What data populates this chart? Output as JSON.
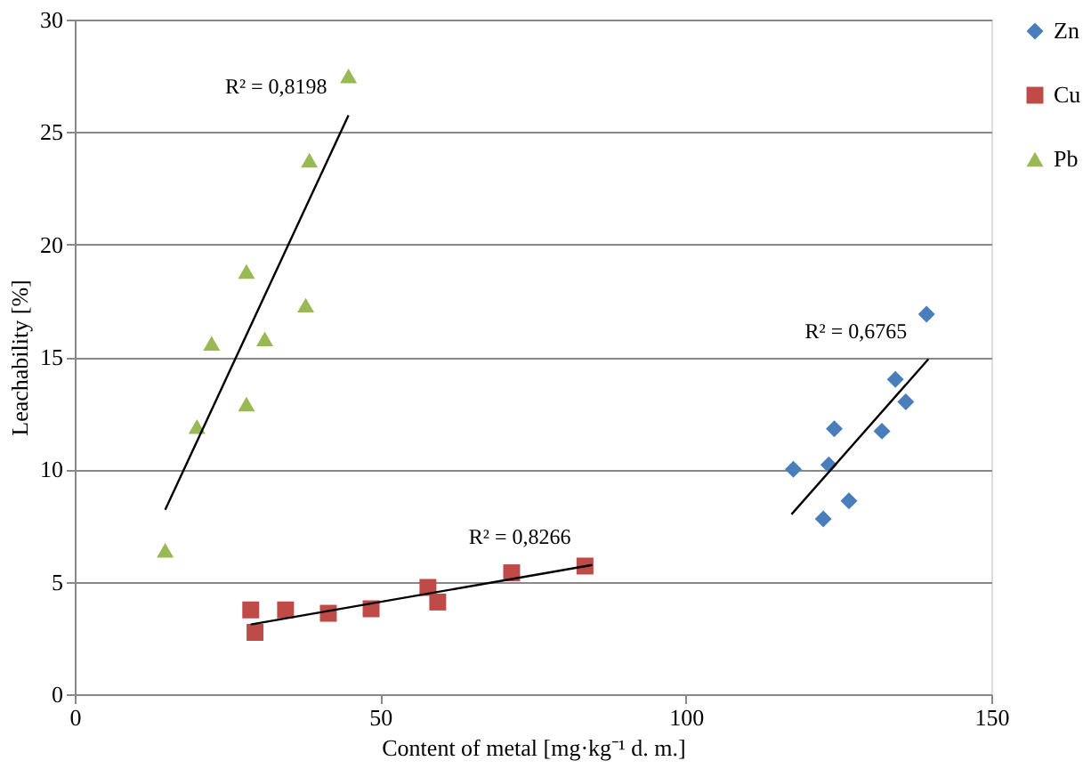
{
  "chart_data": {
    "type": "scatter",
    "xlabel": "Content of metal  [mg·kg⁻¹  d. m.]",
    "ylabel": "Leachability  [%]",
    "xlim": [
      0,
      150
    ],
    "xticks": [
      0,
      50,
      100,
      150
    ],
    "ylim": [
      0,
      30
    ],
    "yticks": [
      0,
      5,
      10,
      15,
      20,
      25,
      30
    ],
    "grid": "y",
    "legend": "right",
    "series": [
      {
        "name": "Zn",
        "color": "#4a7ebb",
        "marker": "diamond",
        "x": [
          139.4,
          134.3,
          136,
          124.3,
          132.1,
          117.6,
          123.4,
          122.5,
          126.7
        ],
        "values": [
          16.9,
          14.0,
          13.0,
          11.8,
          11.7,
          10.0,
          10.2,
          7.8,
          8.6
        ]
      },
      {
        "name": "Cu",
        "color": "#be4b48",
        "marker": "square",
        "x": [
          28.8,
          29.5,
          34.5,
          41.5,
          48.5,
          57.8,
          59.4,
          71.5,
          83.5
        ],
        "values": [
          3.75,
          2.75,
          3.75,
          3.6,
          3.8,
          4.75,
          4.1,
          5.4,
          5.7
        ]
      },
      {
        "name": "Pb",
        "color": "#98b954",
        "marker": "triangle",
        "x": [
          14.8,
          20,
          22.4,
          28.1,
          28.1,
          31.1,
          37.8,
          38.4,
          44.8
        ],
        "values": [
          6.4,
          11.9,
          15.6,
          18.8,
          12.9,
          15.8,
          17.3,
          23.75,
          27.5
        ]
      },
      {
        "type": "line",
        "color": "#000000",
        "x": [
          117.3,
          139.7
        ],
        "values": [
          8.0,
          14.9
        ]
      },
      {
        "type": "line",
        "color": "#000000",
        "x": [
          28.8,
          84.7
        ],
        "values": [
          3.1,
          5.75
        ]
      },
      {
        "type": "line",
        "color": "#000000",
        "x": [
          14.8,
          44.8
        ],
        "values": [
          8.2,
          25.75
        ]
      }
    ],
    "annotations": [
      "R² = 0,6765",
      "R² = 0,8266",
      "R² = 0,8198"
    ]
  }
}
